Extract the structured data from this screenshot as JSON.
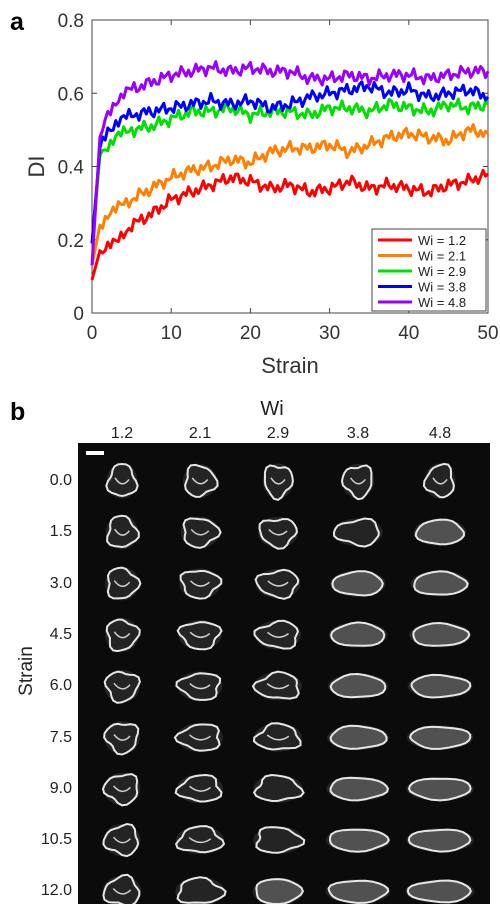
{
  "panel_a": {
    "letter": "a"
  },
  "panel_b": {
    "letter": "b",
    "column_header": "Wi",
    "columns": [
      "1.2",
      "2.1",
      "2.9",
      "3.8",
      "4.8"
    ],
    "row_axis_label": "Strain",
    "rows": [
      "0.0",
      "1.5",
      "3.0",
      "4.5",
      "6.0",
      "7.5",
      "9.0",
      "10.5",
      "12.0"
    ],
    "image_type": "fluorescence micrographs (white shapes on black)"
  },
  "chart_data": {
    "type": "line",
    "xlabel": "Strain",
    "ylabel": "DI",
    "xlim": [
      0,
      50
    ],
    "ylim": [
      0,
      0.8
    ],
    "xticks": [
      "0",
      "10",
      "20",
      "30",
      "40",
      "50"
    ],
    "yticks": [
      "0",
      "0.2",
      "0.4",
      "0.6",
      "0.8"
    ],
    "grid": false,
    "legend_position": "bottom-right",
    "x": [
      0,
      1,
      2,
      3,
      4,
      5,
      7.5,
      10,
      12.5,
      15,
      17.5,
      20,
      22.5,
      25,
      27.5,
      30,
      32.5,
      35,
      37.5,
      40,
      42.5,
      45,
      47.5,
      50
    ],
    "series": [
      {
        "name": "Wi = 1.2",
        "color": "#ff0000",
        "values": [
          0.09,
          0.17,
          0.18,
          0.19,
          0.22,
          0.24,
          0.27,
          0.31,
          0.33,
          0.35,
          0.37,
          0.36,
          0.34,
          0.35,
          0.33,
          0.34,
          0.36,
          0.34,
          0.35,
          0.34,
          0.33,
          0.35,
          0.36,
          0.38
        ]
      },
      {
        "name": "Wi = 2.1",
        "color": "#ff8000",
        "values": [
          0.13,
          0.24,
          0.27,
          0.28,
          0.3,
          0.31,
          0.34,
          0.37,
          0.39,
          0.4,
          0.42,
          0.41,
          0.44,
          0.45,
          0.45,
          0.46,
          0.44,
          0.46,
          0.48,
          0.49,
          0.48,
          0.47,
          0.5,
          0.49
        ]
      },
      {
        "name": "Wi = 2.9",
        "color": "#00e000",
        "values": [
          0.19,
          0.43,
          0.46,
          0.48,
          0.49,
          0.5,
          0.51,
          0.53,
          0.55,
          0.55,
          0.56,
          0.54,
          0.55,
          0.55,
          0.54,
          0.56,
          0.56,
          0.55,
          0.57,
          0.56,
          0.55,
          0.57,
          0.56,
          0.57
        ]
      },
      {
        "name": "Wi = 3.8",
        "color": "#0000ff",
        "values": [
          0.19,
          0.45,
          0.5,
          0.52,
          0.53,
          0.54,
          0.55,
          0.56,
          0.57,
          0.58,
          0.57,
          0.58,
          0.56,
          0.57,
          0.59,
          0.6,
          0.61,
          0.62,
          0.6,
          0.61,
          0.59,
          0.6,
          0.61,
          0.59
        ]
      },
      {
        "name": "Wi = 4.8",
        "color": "#9900ff",
        "values": [
          0.13,
          0.48,
          0.54,
          0.58,
          0.6,
          0.61,
          0.63,
          0.65,
          0.66,
          0.67,
          0.66,
          0.67,
          0.66,
          0.66,
          0.64,
          0.64,
          0.65,
          0.64,
          0.65,
          0.65,
          0.64,
          0.65,
          0.66,
          0.66
        ]
      }
    ]
  }
}
